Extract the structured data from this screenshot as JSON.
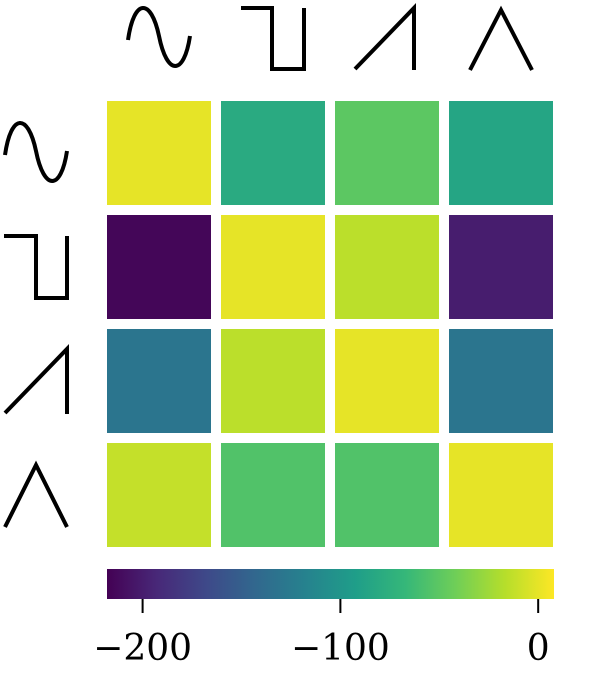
{
  "chart_data": {
    "type": "heatmap",
    "title": "",
    "xlabel": "",
    "ylabel": "",
    "categories": [
      "sine",
      "square",
      "sawtooth",
      "triangle"
    ],
    "row_categories": [
      "sine",
      "square",
      "sawtooth",
      "triangle"
    ],
    "values": [
      [
        0,
        -80,
        -50,
        -85
      ],
      [
        -215,
        0,
        -15,
        -200
      ],
      [
        -130,
        -15,
        0,
        -130
      ],
      [
        -12,
        -55,
        -55,
        0
      ]
    ],
    "colorbar": {
      "range": [
        -218,
        8
      ],
      "ticks": [
        -200,
        -100,
        0
      ],
      "tick_labels": [
        "−200",
        "−100",
        "0"
      ],
      "colormap": "viridis",
      "placement": "bottom"
    },
    "axis_icons": [
      "sine-wave-icon",
      "square-wave-icon",
      "sawtooth-wave-icon",
      "triangle-wave-icon"
    ]
  }
}
